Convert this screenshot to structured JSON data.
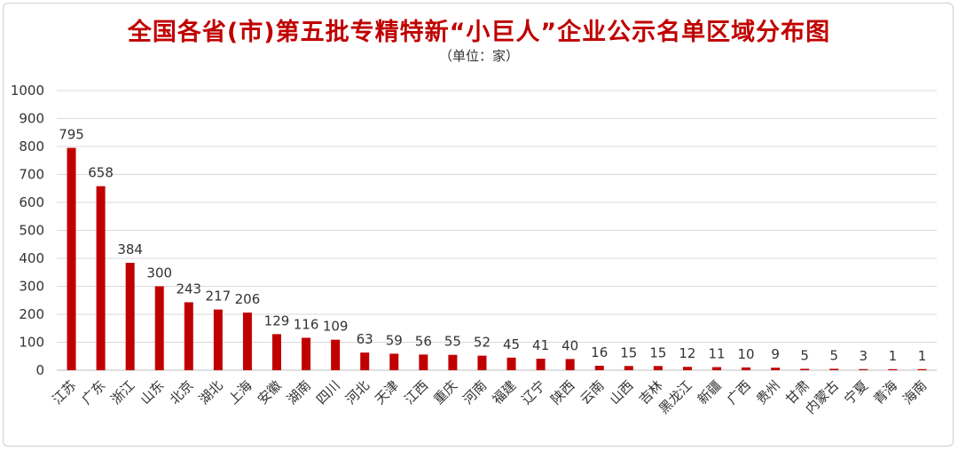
{
  "chart_data": {
    "type": "bar",
    "title": "全国各省(市)第五批专精特新“小巨人”企业公示名单区域分布图",
    "subtitle": "（单位：家）",
    "categories": [
      "江苏",
      "广东",
      "浙江",
      "山东",
      "北京",
      "湖北",
      "上海",
      "安徽",
      "湖南",
      "四川",
      "河北",
      "天津",
      "江西",
      "重庆",
      "河南",
      "福建",
      "辽宁",
      "陕西",
      "云南",
      "山西",
      "吉林",
      "黑龙江",
      "新疆",
      "广西",
      "贵州",
      "甘肃",
      "内蒙古",
      "宁夏",
      "青海",
      "海南"
    ],
    "values": [
      795,
      658,
      384,
      300,
      243,
      217,
      206,
      129,
      116,
      109,
      63,
      59,
      56,
      55,
      52,
      45,
      41,
      40,
      16,
      15,
      15,
      12,
      11,
      10,
      9,
      5,
      5,
      3,
      1,
      1
    ],
    "ylim": [
      0,
      1000
    ],
    "yticks": [
      0,
      100,
      200,
      300,
      400,
      500,
      600,
      700,
      800,
      900,
      1000
    ],
    "grid": true,
    "legend": "none",
    "bar_color": "#c00000",
    "xlabel": "",
    "ylabel": ""
  }
}
